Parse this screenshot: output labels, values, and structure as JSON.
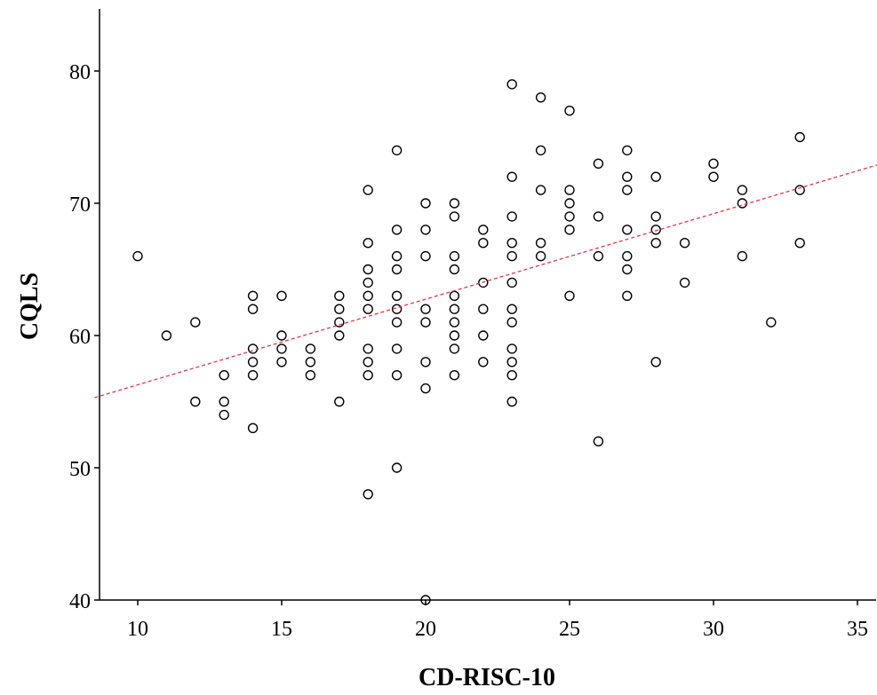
{
  "chart_data": {
    "type": "scatter",
    "title": "",
    "xlabel": "CD-RISC-10",
    "ylabel": "CQLS",
    "xlim": [
      8.5,
      36
    ],
    "ylim": [
      40,
      84
    ],
    "xticks": [
      10,
      15,
      20,
      25,
      30,
      35
    ],
    "yticks": [
      40,
      50,
      60,
      70,
      80
    ],
    "grid": false,
    "legend": "none",
    "colors": {
      "points": "#000000",
      "fit_line": "#e8314a"
    },
    "fit_line": {
      "x": [
        8.5,
        36
      ],
      "y": [
        55.3,
        73.1
      ]
    },
    "points": [
      [
        10,
        66
      ],
      [
        11,
        60
      ],
      [
        12,
        61
      ],
      [
        12,
        55
      ],
      [
        13,
        57
      ],
      [
        13,
        55
      ],
      [
        13,
        54
      ],
      [
        14,
        63
      ],
      [
        14,
        62
      ],
      [
        14,
        59
      ],
      [
        14,
        58
      ],
      [
        14,
        57
      ],
      [
        14,
        53
      ],
      [
        15,
        63
      ],
      [
        15,
        60
      ],
      [
        15,
        59
      ],
      [
        15,
        58
      ],
      [
        16,
        59
      ],
      [
        16,
        58
      ],
      [
        16,
        57
      ],
      [
        17,
        63
      ],
      [
        17,
        62
      ],
      [
        17,
        61
      ],
      [
        17,
        60
      ],
      [
        17,
        55
      ],
      [
        18,
        71
      ],
      [
        18,
        67
      ],
      [
        18,
        65
      ],
      [
        18,
        64
      ],
      [
        18,
        63
      ],
      [
        18,
        62
      ],
      [
        18,
        59
      ],
      [
        18,
        58
      ],
      [
        18,
        57
      ],
      [
        18,
        48
      ],
      [
        19,
        74
      ],
      [
        19,
        68
      ],
      [
        19,
        66
      ],
      [
        19,
        65
      ],
      [
        19,
        63
      ],
      [
        19,
        62
      ],
      [
        19,
        61
      ],
      [
        19,
        59
      ],
      [
        19,
        57
      ],
      [
        19,
        50
      ],
      [
        20,
        70
      ],
      [
        20,
        68
      ],
      [
        20,
        66
      ],
      [
        20,
        62
      ],
      [
        20,
        61
      ],
      [
        20,
        58
      ],
      [
        20,
        56
      ],
      [
        20,
        40
      ],
      [
        21,
        70
      ],
      [
        21,
        69
      ],
      [
        21,
        66
      ],
      [
        21,
        65
      ],
      [
        21,
        63
      ],
      [
        21,
        62
      ],
      [
        21,
        61
      ],
      [
        21,
        60
      ],
      [
        21,
        59
      ],
      [
        21,
        57
      ],
      [
        22,
        68
      ],
      [
        22,
        67
      ],
      [
        22,
        64
      ],
      [
        22,
        62
      ],
      [
        22,
        60
      ],
      [
        22,
        58
      ],
      [
        23,
        79
      ],
      [
        23,
        72
      ],
      [
        23,
        69
      ],
      [
        23,
        67
      ],
      [
        23,
        66
      ],
      [
        23,
        64
      ],
      [
        23,
        62
      ],
      [
        23,
        61
      ],
      [
        23,
        59
      ],
      [
        23,
        58
      ],
      [
        23,
        57
      ],
      [
        23,
        55
      ],
      [
        24,
        78
      ],
      [
        24,
        74
      ],
      [
        24,
        71
      ],
      [
        24,
        67
      ],
      [
        24,
        66
      ],
      [
        25,
        77
      ],
      [
        25,
        71
      ],
      [
        25,
        70
      ],
      [
        25,
        69
      ],
      [
        25,
        68
      ],
      [
        25,
        63
      ],
      [
        26,
        73
      ],
      [
        26,
        69
      ],
      [
        26,
        66
      ],
      [
        26,
        52
      ],
      [
        27,
        74
      ],
      [
        27,
        72
      ],
      [
        27,
        71
      ],
      [
        27,
        68
      ],
      [
        27,
        66
      ],
      [
        27,
        65
      ],
      [
        27,
        63
      ],
      [
        28,
        72
      ],
      [
        28,
        69
      ],
      [
        28,
        68
      ],
      [
        28,
        67
      ],
      [
        28,
        58
      ],
      [
        29,
        67
      ],
      [
        29,
        64
      ],
      [
        30,
        73
      ],
      [
        30,
        72
      ],
      [
        31,
        71
      ],
      [
        31,
        70
      ],
      [
        31,
        66
      ],
      [
        32,
        61
      ],
      [
        33,
        75
      ],
      [
        33,
        71
      ],
      [
        33,
        67
      ]
    ]
  }
}
